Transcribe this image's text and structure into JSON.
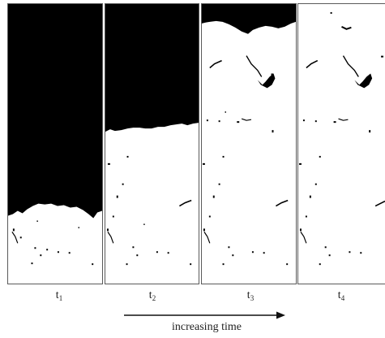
{
  "colors": {
    "background": "#ffffff",
    "solid": "#000000",
    "frame": "#5a5a5a",
    "text": "#222222"
  },
  "panels": [
    {
      "base": "t",
      "sub": "1",
      "black_fraction": 0.74
    },
    {
      "base": "t",
      "sub": "2",
      "black_fraction": 0.44
    },
    {
      "base": "t",
      "sub": "3",
      "black_fraction": 0.08
    },
    {
      "base": "t",
      "sub": "4",
      "black_fraction": 0.0
    }
  ],
  "caption": "increasing time"
}
